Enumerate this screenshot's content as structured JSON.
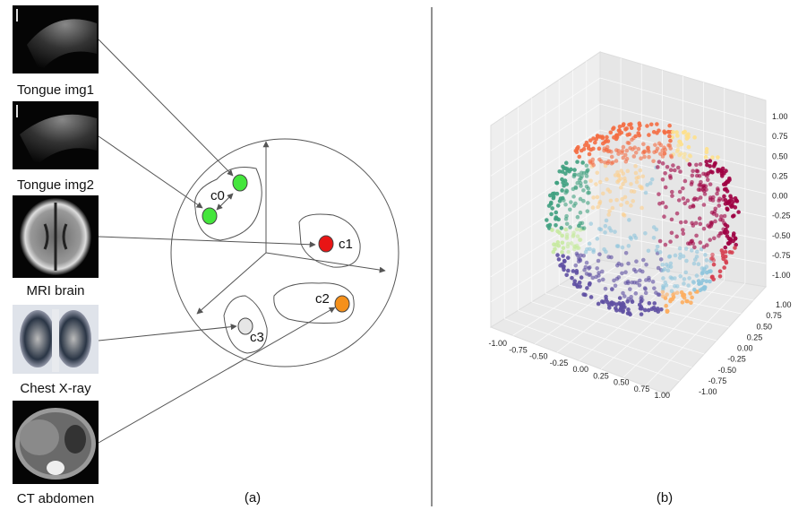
{
  "panel_a": {
    "images": [
      {
        "label": "Tongue img1"
      },
      {
        "label": "Tongue img2"
      },
      {
        "label": "MRI brain"
      },
      {
        "label": "Chest X-ray"
      },
      {
        "label": "CT abdomen"
      }
    ],
    "clusters": [
      {
        "label": "c0",
        "color": "#44e63c"
      },
      {
        "label": "c1",
        "color": "#e81515"
      },
      {
        "label": "c2",
        "color": "#f5901a"
      },
      {
        "label": "c3",
        "color": "#e6e6e6"
      }
    ],
    "caption": "(a)"
  },
  "panel_b": {
    "z_ticks": [
      "1.00",
      "0.75",
      "0.50",
      "0.25",
      "0.00",
      "-0.25",
      "-0.50",
      "-0.75",
      "-1.00"
    ],
    "x_ticks": [
      "-1.00",
      "-0.75",
      "-0.50",
      "-0.25",
      "0.00",
      "0.25",
      "0.50",
      "0.75",
      "1.00"
    ],
    "y_ticks": [
      "1.00",
      "0.75",
      "0.50",
      "0.25",
      "0.00",
      "-0.25",
      "-0.50",
      "-0.75",
      "-1.00"
    ],
    "caption": "(b)"
  }
}
